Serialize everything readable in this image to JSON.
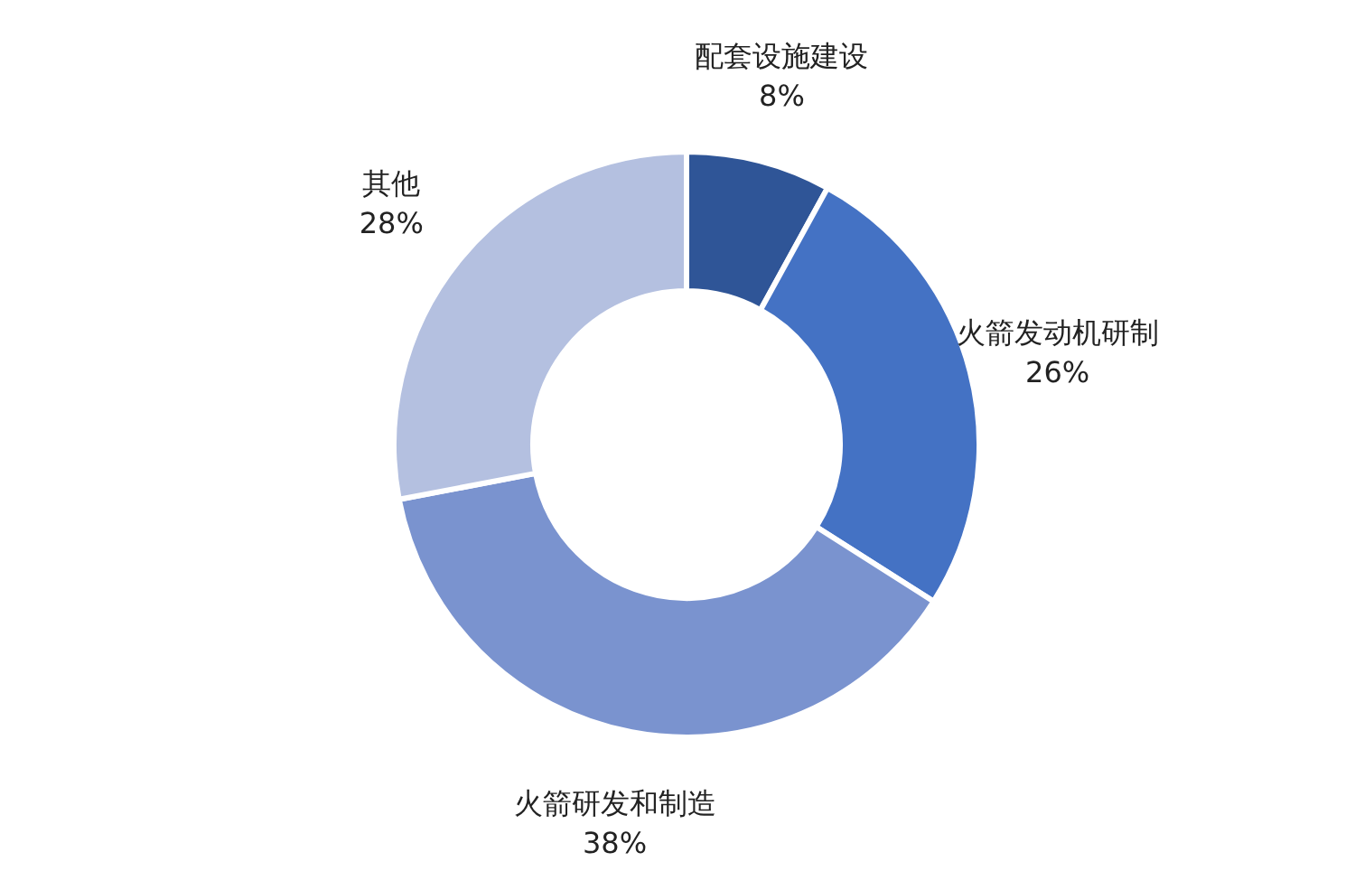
{
  "chart_data": {
    "type": "donut",
    "categories": [
      "配套设施建设",
      "火箭发动机研制",
      "火箭研发和制造",
      "其他"
    ],
    "values": [
      8,
      26,
      38,
      28
    ],
    "colors": [
      "#2f5597",
      "#4472c4",
      "#7a93cf",
      "#b4c0e0"
    ],
    "value_labels": [
      "8%",
      "26%",
      "38%",
      "28%"
    ],
    "legend": false
  }
}
